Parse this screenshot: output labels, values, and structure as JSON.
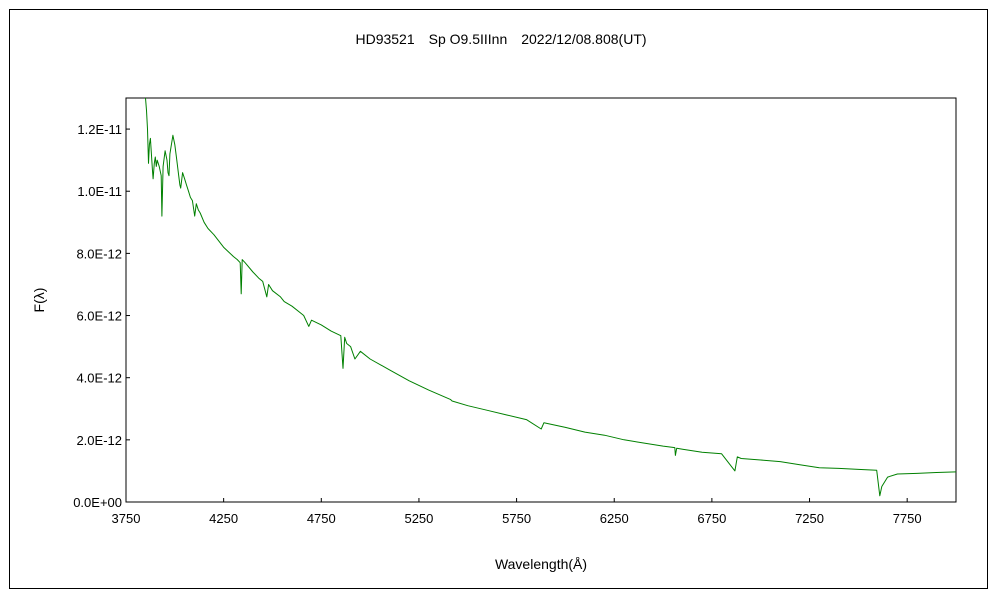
{
  "chart_data": {
    "type": "line",
    "title": "HD93521　Sp O9.5IIInn　2022/12/08.808(UT)",
    "xlabel": "Wavelength(Å)",
    "ylabel": "F(λ)",
    "xlim": [
      3750,
      8000
    ],
    "ylim": [
      0,
      1.3e-11
    ],
    "x_ticks": [
      3750,
      4250,
      4750,
      5250,
      5750,
      6250,
      6750,
      7250,
      7750
    ],
    "x_tick_labels": [
      "3750",
      "4250",
      "4750",
      "5250",
      "5750",
      "6250",
      "6750",
      "7250",
      "7750"
    ],
    "y_ticks": [
      0,
      2e-12,
      4e-12,
      6e-12,
      8e-12,
      1e-11,
      1.2e-11
    ],
    "y_tick_labels": [
      "0.0E+00",
      "2.0E-12",
      "4.0E-12",
      "6.0E-12",
      "8.0E-12",
      "1.0E-11",
      "1.2E-11"
    ],
    "grid": false,
    "series": [
      {
        "color": "#008000",
        "x": [
          3850,
          3855,
          3860,
          3865,
          3870,
          3875,
          3880,
          3885,
          3889,
          3895,
          3900,
          3905,
          3910,
          3920,
          3930,
          3934,
          3940,
          3950,
          3960,
          3965,
          3970,
          3975,
          3980,
          3990,
          4000,
          4010,
          4020,
          4026,
          4030,
          4040,
          4050,
          4060,
          4070,
          4080,
          4090,
          4102,
          4110,
          4120,
          4130,
          4150,
          4170,
          4200,
          4250,
          4300,
          4320,
          4335,
          4340,
          4345,
          4360,
          4400,
          4430,
          4450,
          4471,
          4480,
          4500,
          4541,
          4560,
          4600,
          4640,
          4660,
          4686,
          4700,
          4750,
          4800,
          4850,
          4861,
          4870,
          4880,
          4900,
          4922,
          4950,
          5000,
          5100,
          5200,
          5300,
          5411,
          5420,
          5500,
          5600,
          5700,
          5800,
          5876,
          5890,
          6000,
          6100,
          6200,
          6300,
          6400,
          6500,
          6560,
          6563,
          6570,
          6600,
          6700,
          6800,
          6868,
          6880,
          6900,
          7000,
          7100,
          7200,
          7300,
          7400,
          7500,
          7594,
          7610,
          7620,
          7650,
          7700,
          7800,
          7900,
          8000
        ],
        "y": [
          1.3e-11,
          1.26e-11,
          1.2e-11,
          1.09e-11,
          1.15e-11,
          1.17e-11,
          1.12e-11,
          1.07e-11,
          1.04e-11,
          1.09e-11,
          1.11e-11,
          1.08e-11,
          1.1e-11,
          1.08e-11,
          1.05e-11,
          9.2e-12,
          1.08e-11,
          1.13e-11,
          1.1e-11,
          1.06e-11,
          1.05e-11,
          1.12e-11,
          1.14e-11,
          1.18e-11,
          1.15e-11,
          1.1e-11,
          1.05e-11,
          1.02e-11,
          1.01e-11,
          1.06e-11,
          1.04e-11,
          1.02e-11,
          1e-11,
          9.8e-12,
          9.7e-12,
          9.2e-12,
          9.6e-12,
          9.4e-12,
          9.3e-12,
          9e-12,
          8.8e-12,
          8.6e-12,
          8.2e-12,
          7.9e-12,
          7.8e-12,
          7.7e-12,
          6.7e-12,
          7.8e-12,
          7.7e-12,
          7.4e-12,
          7.2e-12,
          7.1e-12,
          6.6e-12,
          7e-12,
          6.8e-12,
          6.6e-12,
          6.45e-12,
          6.3e-12,
          6.1e-12,
          6e-12,
          5.65e-12,
          5.85e-12,
          5.7e-12,
          5.5e-12,
          5.35e-12,
          4.3e-12,
          5.3e-12,
          5.1e-12,
          5e-12,
          4.6e-12,
          4.85e-12,
          4.6e-12,
          4.25e-12,
          3.9e-12,
          3.6e-12,
          3.3e-12,
          3.25e-12,
          3.1e-12,
          2.95e-12,
          2.8e-12,
          2.65e-12,
          2.35e-12,
          2.55e-12,
          2.4e-12,
          2.25e-12,
          2.15e-12,
          2e-12,
          1.9e-12,
          1.8e-12,
          1.75e-12,
          1.5e-12,
          1.73e-12,
          1.7e-12,
          1.6e-12,
          1.55e-12,
          1e-12,
          1.45e-12,
          1.4e-12,
          1.35e-12,
          1.3e-12,
          1.2e-12,
          1.1e-12,
          1.08e-12,
          1.05e-12,
          1.02e-12,
          2e-13,
          5e-13,
          8e-13,
          9e-13,
          9.2e-13,
          9.5e-13,
          9.7e-13
        ]
      }
    ]
  }
}
